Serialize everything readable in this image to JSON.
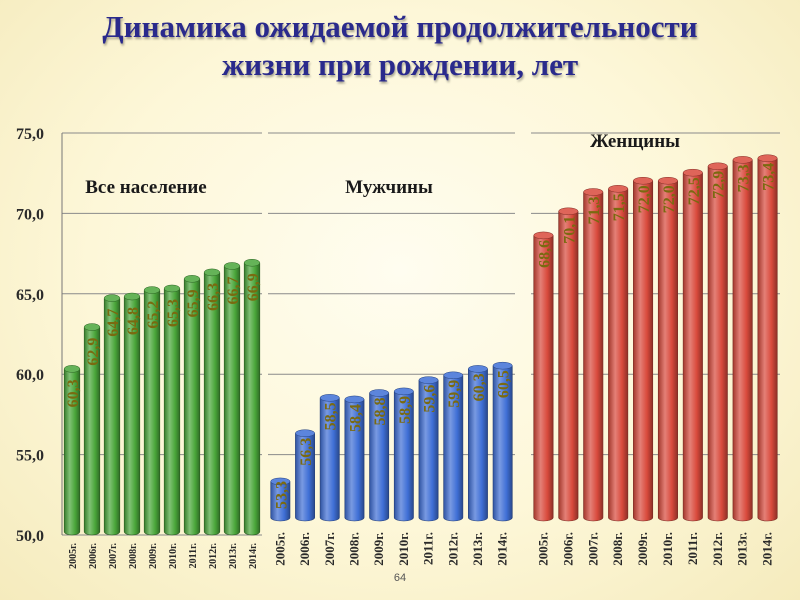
{
  "title": [
    "Динамика ожидаемой продолжительности",
    "жизни при рождении, лет"
  ],
  "page_number": "64",
  "chart_data": [
    {
      "type": "bar",
      "title": "Все население",
      "color": "#4aa63a",
      "label_color": "#7a6a10",
      "categories": [
        "2005г.",
        "2006г.",
        "2007г.",
        "2008г.",
        "2009г.",
        "2010г.",
        "2011г.",
        "2012г.",
        "2013г.",
        "2014г."
      ],
      "values": [
        60.3,
        62.9,
        64.7,
        64.8,
        65.2,
        65.3,
        65.9,
        66.3,
        66.7,
        66.9
      ],
      "value_labels": [
        "60,3",
        "62,9",
        "64,7",
        "64,8",
        "65,2",
        "65,3",
        "65,9",
        "66,3",
        "66,7",
        "66,9"
      ],
      "ylim": [
        50,
        75
      ],
      "yticks": [
        "50,0",
        "55,0",
        "60,0",
        "65,0",
        "70,0",
        "75,0"
      ],
      "grid": true
    },
    {
      "type": "bar",
      "title": "Мужчины",
      "color": "#3f6fd6",
      "label_color": "#7a6a10",
      "categories": [
        "2005г.",
        "2006г.",
        "2007г.",
        "2008г.",
        "2009г.",
        "2010г.",
        "2011г.",
        "2012г.",
        "2013г.",
        "2014г."
      ],
      "values": [
        53.3,
        56.3,
        58.5,
        58.4,
        58.8,
        58.9,
        59.6,
        59.9,
        60.3,
        60.5
      ],
      "value_labels": [
        "53,3",
        "56,3",
        "58,5",
        "58,4",
        "58,8",
        "58,9",
        "59,6",
        "59,9",
        "60,3",
        "60,5"
      ],
      "ylim": [
        50,
        75
      ],
      "grid": true
    },
    {
      "type": "bar",
      "title": "Женщины",
      "color": "#d94a3c",
      "label_color": "#7a6a10",
      "categories": [
        "2005г.",
        "2006г.",
        "2007г.",
        "2008г.",
        "2009г.",
        "2010г.",
        "2011г.",
        "2012г.",
        "2013г.",
        "2014г."
      ],
      "values": [
        68.6,
        70.1,
        71.3,
        71.5,
        72.0,
        72.0,
        72.5,
        72.9,
        73.3,
        73.4
      ],
      "value_labels": [
        "68,6",
        "70,1",
        "71,3",
        "71,5",
        "72,0",
        "72,0",
        "72,5",
        "72,9",
        "73,3",
        "73,4"
      ],
      "ylim": [
        50,
        75
      ],
      "grid": true
    }
  ]
}
